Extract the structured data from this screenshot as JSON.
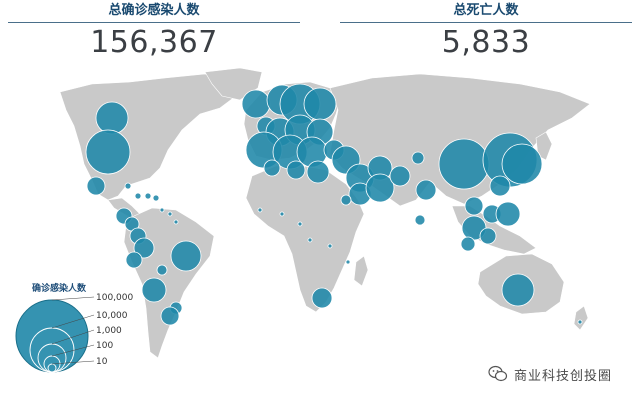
{
  "stats": {
    "confirmed_label": "总确诊感染人数",
    "confirmed_value": "156,367",
    "deaths_label": "总死亡人数",
    "deaths_value": "5,833"
  },
  "legend": {
    "title": "确诊感染人数",
    "levels": [
      "100,000",
      "10,000",
      "1,000",
      "100",
      "10"
    ]
  },
  "watermark": {
    "text": "商业科技创投圈",
    "icon": "wechat-icon"
  },
  "colors": {
    "land": "#c9c9c9",
    "bubble": "#1f87a8",
    "bubble_stroke": "#ffffff",
    "header_text": "#1a4a70",
    "number_text": "#3b3f44"
  }
}
